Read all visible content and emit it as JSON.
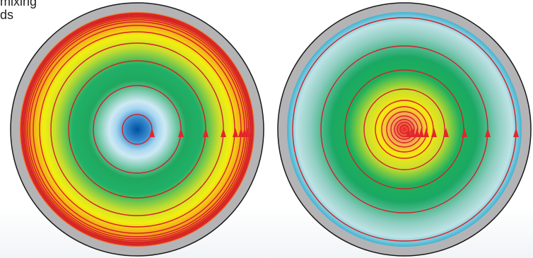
{
  "label_text": "mixing\nds",
  "colors": {
    "rim": "#b4b4b6",
    "rim_stroke": "#1a1a1a",
    "streamline": "#d41f27",
    "arrow": "#e2262b"
  },
  "disks": [
    {
      "name": "left-disk",
      "gradient": [
        "#0050a0",
        "#78c0e8",
        "#cfe9f4",
        "#21ad5a",
        "#1cb56a",
        "#c8de2e",
        "#f1ef10",
        "#f07b22"
      ],
      "rings": 13,
      "arrows": 6
    },
    {
      "name": "right-disk",
      "gradient": [
        "#ec2628",
        "#f59a5c",
        "#f6e812",
        "#c8de2e",
        "#1fb05c",
        "#2ab47a",
        "#9ad3c8",
        "#41b4d3"
      ],
      "rings": 15,
      "arrows": 10
    }
  ]
}
